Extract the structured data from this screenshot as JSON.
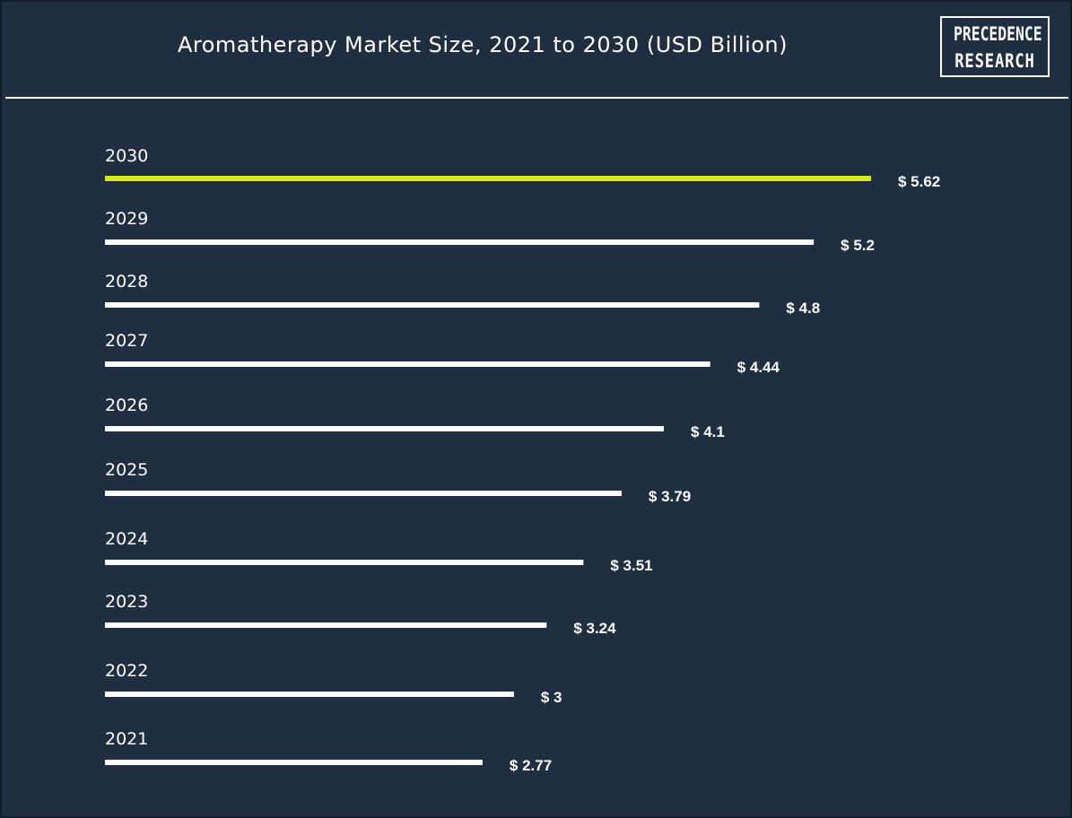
{
  "header": {
    "title": "Aromatherapy Market Size, 2021 to 2030 (USD Billion)",
    "logo_line1": "PRECEDENCE",
    "logo_line2": "RESEARCH"
  },
  "colors": {
    "background": "#1f2e40",
    "bar": "#ffffff",
    "highlight_bar": "#d4ea1c",
    "text": "#ffffff"
  },
  "chart_data": {
    "type": "bar",
    "orientation": "horizontal",
    "title": "Aromatherapy Market Size, 2021 to 2030 (USD Billion)",
    "categories": [
      "2030",
      "2029",
      "2028",
      "2027",
      "2026",
      "2025",
      "2024",
      "2023",
      "2022",
      "2021"
    ],
    "values": [
      5.62,
      5.2,
      4.8,
      4.44,
      4.1,
      3.79,
      3.51,
      3.24,
      3,
      2.77
    ],
    "value_labels": [
      "$ 5.62",
      "$ 5.2",
      "$ 4.8",
      "$ 4.44",
      "$ 4.1",
      "$ 3.79",
      "$ 3.51",
      "$ 3.24",
      "$ 3",
      "$ 2.77"
    ],
    "highlight_category": "2030",
    "xlabel": "",
    "ylabel": "",
    "grid": false,
    "legend": "none"
  }
}
